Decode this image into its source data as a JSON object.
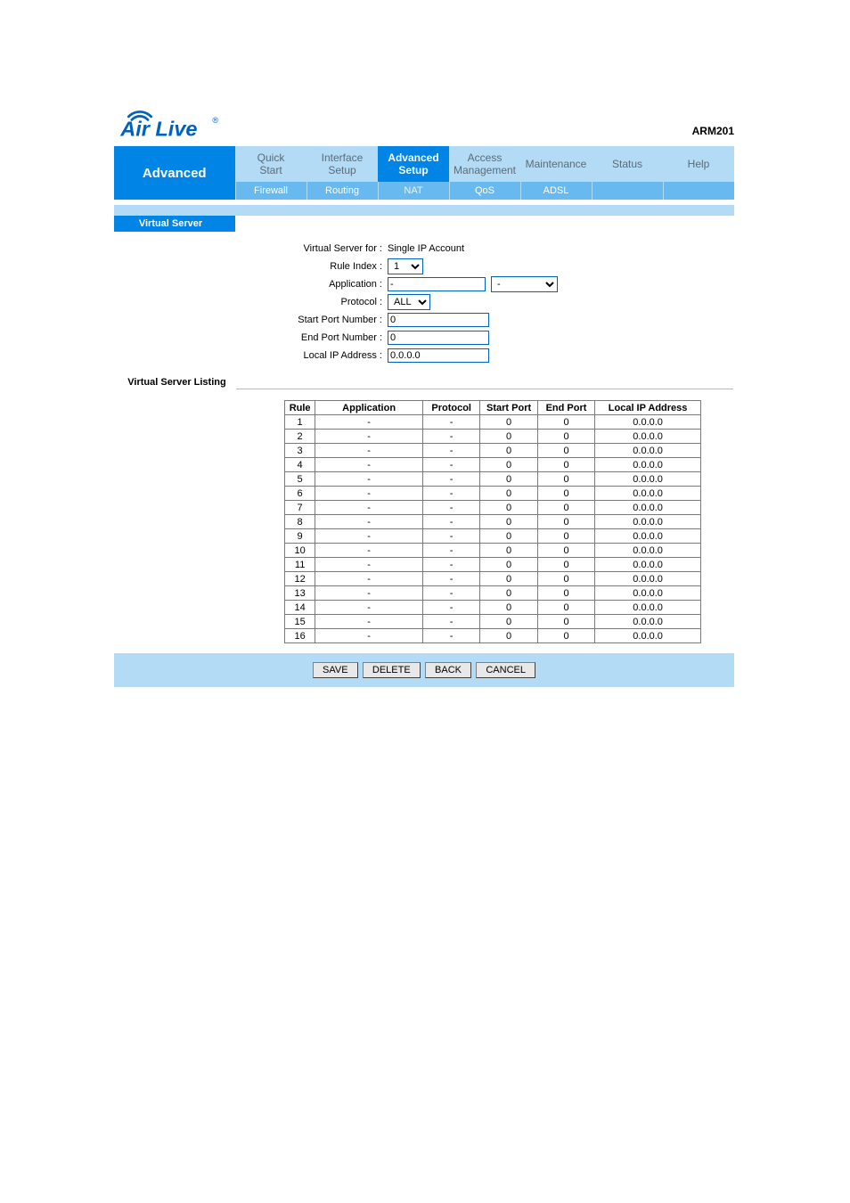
{
  "model": "ARM201",
  "logo": {
    "text": "Air Live",
    "accent_color": "#0060c0",
    "reg_mark": "®"
  },
  "nav": {
    "section_label": "Advanced",
    "items": [
      {
        "line1": "Quick",
        "line2": "Start"
      },
      {
        "line1": "Interface",
        "line2": "Setup"
      },
      {
        "line1": "Advanced",
        "line2": "Setup",
        "active": true
      },
      {
        "line1": "Access",
        "line2": "Management"
      },
      {
        "line1": "Maintenance",
        "line2": ""
      },
      {
        "line1": "Status",
        "line2": ""
      },
      {
        "line1": "Help",
        "line2": ""
      }
    ]
  },
  "subnav": {
    "items": [
      "Firewall",
      "Routing",
      "NAT",
      "QoS",
      "ADSL"
    ]
  },
  "section": {
    "virtual_server_label": "Virtual Server",
    "listing_label": "Virtual Server Listing"
  },
  "form": {
    "vs_for_label": "Virtual Server for :",
    "vs_for_value": "Single IP Account",
    "rule_index_label": "Rule Index :",
    "rule_index_value": "1",
    "application_label": "Application :",
    "application_value": "-",
    "application_select_value": "-",
    "protocol_label": "Protocol :",
    "protocol_value": "ALL",
    "start_port_label": "Start Port Number :",
    "start_port_value": "0",
    "end_port_label": "End Port Number :",
    "end_port_value": "0",
    "local_ip_label": "Local IP Address :",
    "local_ip_value": "0.0.0.0"
  },
  "table": {
    "headers": {
      "rule": "Rule",
      "app": "Application",
      "proto": "Protocol",
      "sp": "Start Port",
      "ep": "End Port",
      "ip": "Local IP Address"
    },
    "rows": [
      {
        "rule": "1",
        "app": "-",
        "proto": "-",
        "sp": "0",
        "ep": "0",
        "ip": "0.0.0.0"
      },
      {
        "rule": "2",
        "app": "-",
        "proto": "-",
        "sp": "0",
        "ep": "0",
        "ip": "0.0.0.0"
      },
      {
        "rule": "3",
        "app": "-",
        "proto": "-",
        "sp": "0",
        "ep": "0",
        "ip": "0.0.0.0"
      },
      {
        "rule": "4",
        "app": "-",
        "proto": "-",
        "sp": "0",
        "ep": "0",
        "ip": "0.0.0.0"
      },
      {
        "rule": "5",
        "app": "-",
        "proto": "-",
        "sp": "0",
        "ep": "0",
        "ip": "0.0.0.0"
      },
      {
        "rule": "6",
        "app": "-",
        "proto": "-",
        "sp": "0",
        "ep": "0",
        "ip": "0.0.0.0"
      },
      {
        "rule": "7",
        "app": "-",
        "proto": "-",
        "sp": "0",
        "ep": "0",
        "ip": "0.0.0.0"
      },
      {
        "rule": "8",
        "app": "-",
        "proto": "-",
        "sp": "0",
        "ep": "0",
        "ip": "0.0.0.0"
      },
      {
        "rule": "9",
        "app": "-",
        "proto": "-",
        "sp": "0",
        "ep": "0",
        "ip": "0.0.0.0"
      },
      {
        "rule": "10",
        "app": "-",
        "proto": "-",
        "sp": "0",
        "ep": "0",
        "ip": "0.0.0.0"
      },
      {
        "rule": "11",
        "app": "-",
        "proto": "-",
        "sp": "0",
        "ep": "0",
        "ip": "0.0.0.0"
      },
      {
        "rule": "12",
        "app": "-",
        "proto": "-",
        "sp": "0",
        "ep": "0",
        "ip": "0.0.0.0"
      },
      {
        "rule": "13",
        "app": "-",
        "proto": "-",
        "sp": "0",
        "ep": "0",
        "ip": "0.0.0.0"
      },
      {
        "rule": "14",
        "app": "-",
        "proto": "-",
        "sp": "0",
        "ep": "0",
        "ip": "0.0.0.0"
      },
      {
        "rule": "15",
        "app": "-",
        "proto": "-",
        "sp": "0",
        "ep": "0",
        "ip": "0.0.0.0"
      },
      {
        "rule": "16",
        "app": "-",
        "proto": "-",
        "sp": "0",
        "ep": "0",
        "ip": "0.0.0.0"
      }
    ]
  },
  "buttons": {
    "save": "SAVE",
    "delete": "DELETE",
    "back": "BACK",
    "cancel": "CANCEL"
  }
}
